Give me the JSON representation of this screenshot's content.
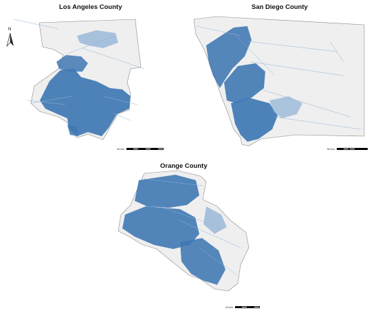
{
  "colors": {
    "county_fill": "#efefef",
    "county_border": "#888888",
    "network_fill": "#3f78b3",
    "network_light": "#8fb2d6",
    "background": "#ffffff"
  },
  "north_arrow": {
    "label": "N",
    "icon": "north-arrow-icon"
  },
  "panels": [
    {
      "title": "Los Angeles County",
      "scale_label": "40 km"
    },
    {
      "title": "San Diego County",
      "scale_label": "50 km"
    },
    {
      "title": "Orange County",
      "scale_label": "10 km"
    }
  ]
}
